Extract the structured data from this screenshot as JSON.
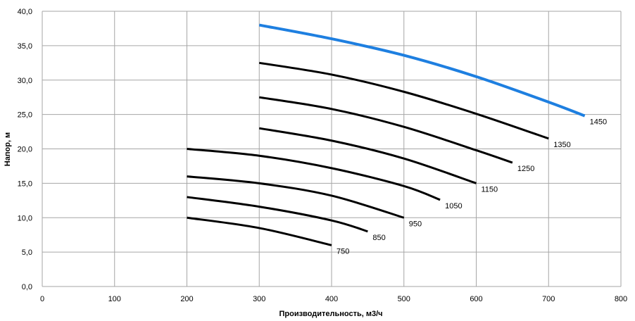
{
  "chart_data": {
    "type": "line",
    "xlabel": "Производительность, м3/ч",
    "ylabel": "Напор, м",
    "xlim": [
      0,
      800
    ],
    "ylim": [
      0,
      40
    ],
    "x_ticks": [
      "0",
      "100",
      "200",
      "300",
      "400",
      "500",
      "600",
      "700",
      "800"
    ],
    "y_ticks": [
      "0,0",
      "5,0",
      "10,0",
      "15,0",
      "20,0",
      "25,0",
      "30,0",
      "35,0",
      "40,0"
    ],
    "grid": true,
    "highlight_color": "#1e7fe0",
    "line_color": "#000000",
    "series": [
      {
        "name": "750",
        "x": [
          200,
          300,
          400
        ],
        "y": [
          10.0,
          8.5,
          6.0
        ]
      },
      {
        "name": "850",
        "x": [
          200,
          300,
          400,
          450
        ],
        "y": [
          13.0,
          11.6,
          9.6,
          8.0
        ]
      },
      {
        "name": "950",
        "x": [
          200,
          300,
          400,
          500
        ],
        "y": [
          16.0,
          15.0,
          13.2,
          10.0
        ]
      },
      {
        "name": "1050",
        "x": [
          200,
          300,
          400,
          500,
          550
        ],
        "y": [
          20.0,
          19.0,
          17.2,
          14.6,
          12.6
        ]
      },
      {
        "name": "1150",
        "x": [
          300,
          400,
          500,
          600
        ],
        "y": [
          23.0,
          21.2,
          18.6,
          15.0
        ]
      },
      {
        "name": "1250",
        "x": [
          300,
          400,
          500,
          600,
          650
        ],
        "y": [
          27.5,
          25.8,
          23.2,
          19.8,
          18.0
        ]
      },
      {
        "name": "1350",
        "x": [
          300,
          400,
          500,
          600,
          700
        ],
        "y": [
          32.5,
          30.8,
          28.3,
          25.1,
          21.5
        ]
      },
      {
        "name": "1450",
        "x": [
          300,
          400,
          500,
          600,
          700,
          750
        ],
        "y": [
          38.0,
          36.0,
          33.6,
          30.5,
          26.8,
          24.8
        ],
        "highlight": true
      }
    ]
  }
}
